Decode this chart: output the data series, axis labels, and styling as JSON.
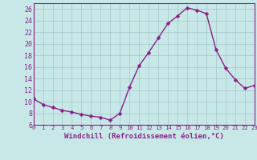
{
  "x": [
    0,
    1,
    2,
    3,
    4,
    5,
    6,
    7,
    8,
    9,
    10,
    11,
    12,
    13,
    14,
    15,
    16,
    17,
    18,
    19,
    20,
    21,
    22,
    23
  ],
  "y": [
    10.5,
    9.5,
    9.0,
    8.5,
    8.2,
    7.8,
    7.5,
    7.3,
    6.8,
    8.0,
    12.5,
    16.2,
    18.5,
    21.0,
    23.5,
    24.8,
    26.2,
    25.8,
    25.2,
    19.0,
    15.8,
    13.8,
    12.3,
    12.8
  ],
  "line_color": "#882288",
  "marker": "D",
  "markersize": 2.5,
  "linewidth": 1.0,
  "background_color": "#c8e8e8",
  "grid_color": "#a0c8c8",
  "xlabel": "Windchill (Refroidissement éolien,°C)",
  "xlim": [
    0,
    23
  ],
  "ylim": [
    6,
    27
  ],
  "yticks": [
    6,
    8,
    10,
    12,
    14,
    16,
    18,
    20,
    22,
    24,
    26
  ],
  "xticks": [
    0,
    1,
    2,
    3,
    4,
    5,
    6,
    7,
    8,
    9,
    10,
    11,
    12,
    13,
    14,
    15,
    16,
    17,
    18,
    19,
    20,
    21,
    22,
    23
  ],
  "xlabel_fontsize": 6.5,
  "tick_fontsize": 6.0,
  "tick_color": "#882288",
  "axis_color": "#882288"
}
